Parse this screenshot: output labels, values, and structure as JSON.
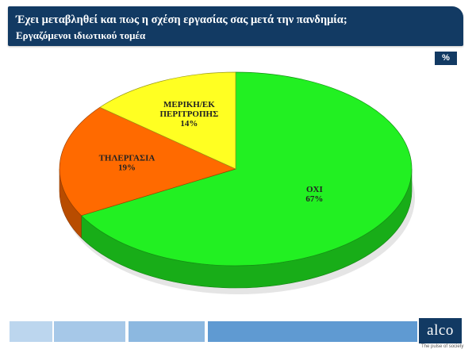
{
  "header": {
    "title": "Έχει μεταβληθεί και πως η σχέση εργασίας σας μετά την πανδημία;",
    "subtitle": "Εργαζόμενοι ιδιωτικού τομέα"
  },
  "unit_badge": "%",
  "chart_data": {
    "type": "pie",
    "title": "Έχει μεταβληθεί και πως η σχέση εργασίας σας μετά την πανδημία;",
    "subtitle": "Εργαζόμενοι ιδιωτικού τομέα",
    "unit": "%",
    "slices": [
      {
        "label_lines": [
          "ΟΧΙ"
        ],
        "value": 67,
        "value_label": "67%",
        "color": "#22f022"
      },
      {
        "label_lines": [
          "ΤΗΛΕΡΓΑΣΙΑ"
        ],
        "value": 19,
        "value_label": "19%",
        "color": "#ff6a00"
      },
      {
        "label_lines": [
          "ΜΕΡΙΚΗ/ΕΚ",
          "ΠΕΡΙΤΡΟΠΗΣ"
        ],
        "value": 14,
        "value_label": "14%",
        "color": "#ffff22"
      }
    ],
    "legend": "none"
  },
  "footer": {
    "logo": "alco",
    "tagline": "The pulse of society",
    "colors": [
      "#bcd6ee",
      "#a6c8e8",
      "#8cb8e0",
      "#5f9ad2"
    ]
  }
}
